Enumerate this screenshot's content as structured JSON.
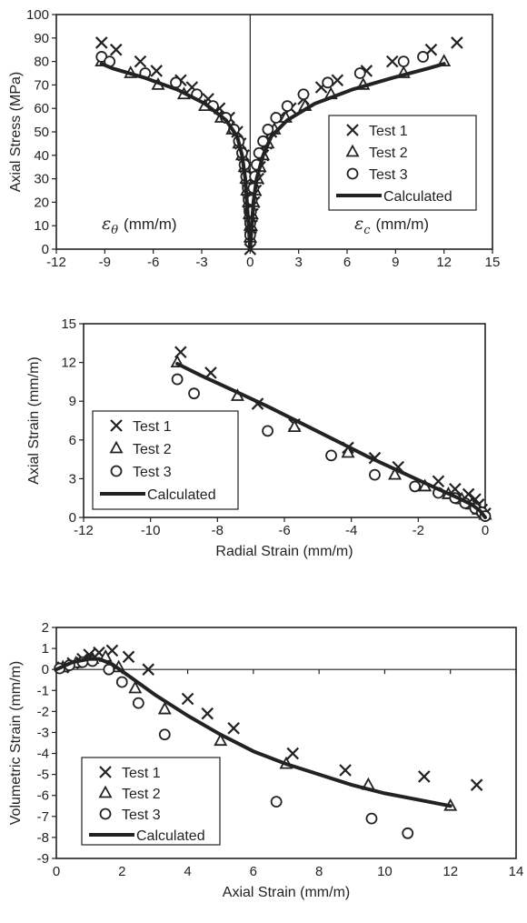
{
  "chart_data": [
    {
      "type": "scatter",
      "xlim": [
        -12,
        15
      ],
      "ylim": [
        0,
        100
      ],
      "xticks": [
        -12,
        -9,
        -6,
        -3,
        0,
        3,
        6,
        9,
        12,
        15
      ],
      "yticks": [
        0,
        10,
        20,
        30,
        40,
        50,
        60,
        70,
        80,
        90,
        100
      ],
      "xlabel": "",
      "ylabel": "Axial Stress (MPa)",
      "annotations": {
        "left": {
          "symbol": "ε",
          "sub": "θ",
          "text": "(mm/m)"
        },
        "right": {
          "symbol": "ε",
          "sub": "c",
          "text": "(mm/m)"
        }
      },
      "legend": {
        "position": "right",
        "entries": [
          "Test 1",
          "Test 2",
          "Test 3",
          "Calculated"
        ]
      },
      "series": [
        {
          "name": "Test 1",
          "marker": "x",
          "points": [
            [
              -9.2,
              88
            ],
            [
              -8.3,
              85
            ],
            [
              -6.8,
              80
            ],
            [
              -5.8,
              76
            ],
            [
              -4.3,
              72
            ],
            [
              -3.6,
              69
            ],
            [
              -2.6,
              64
            ],
            [
              -1.9,
              60
            ],
            [
              -1.3,
              56
            ],
            [
              -0.8,
              50
            ],
            [
              -0.6,
              45
            ],
            [
              -0.4,
              40
            ],
            [
              -0.3,
              35
            ],
            [
              -0.2,
              30
            ],
            [
              -0.15,
              25
            ],
            [
              -0.1,
              20
            ],
            [
              -0.05,
              15
            ],
            [
              0,
              10
            ],
            [
              0,
              5
            ],
            [
              0,
              0
            ],
            [
              12.8,
              88
            ],
            [
              11.2,
              85
            ],
            [
              8.8,
              80
            ],
            [
              7.2,
              76
            ],
            [
              5.4,
              72
            ],
            [
              4.4,
              69
            ],
            [
              3.3,
              64
            ],
            [
              2.5,
              60
            ],
            [
              1.8,
              56
            ],
            [
              1.3,
              50
            ],
            [
              1.0,
              45
            ],
            [
              0.8,
              40
            ],
            [
              0.6,
              35
            ],
            [
              0.5,
              30
            ],
            [
              0.35,
              25
            ],
            [
              0.25,
              20
            ],
            [
              0.15,
              15
            ],
            [
              0.1,
              10
            ],
            [
              0.05,
              5
            ]
          ]
        },
        {
          "name": "Test 2",
          "marker": "triangle",
          "points": [
            [
              -9.2,
              80
            ],
            [
              -7.4,
              75
            ],
            [
              -5.7,
              70
            ],
            [
              -4.1,
              66
            ],
            [
              -2.8,
              61
            ],
            [
              -1.8,
              56
            ],
            [
              -1.1,
              51
            ],
            [
              -0.7,
              45
            ],
            [
              -0.5,
              40
            ],
            [
              -0.35,
              35
            ],
            [
              -0.25,
              30
            ],
            [
              -0.2,
              25
            ],
            [
              -0.1,
              20
            ],
            [
              -0.05,
              15
            ],
            [
              0,
              10
            ],
            [
              0,
              5
            ],
            [
              12.0,
              80
            ],
            [
              9.5,
              75
            ],
            [
              7.0,
              70
            ],
            [
              5.0,
              66
            ],
            [
              3.4,
              61
            ],
            [
              2.2,
              56
            ],
            [
              1.5,
              51
            ],
            [
              1.1,
              45
            ],
            [
              0.8,
              40
            ],
            [
              0.6,
              35
            ],
            [
              0.45,
              30
            ],
            [
              0.3,
              25
            ],
            [
              0.2,
              20
            ],
            [
              0.1,
              15
            ],
            [
              0.05,
              10
            ]
          ]
        },
        {
          "name": "Test 3",
          "marker": "circle",
          "points": [
            [
              -9.2,
              82
            ],
            [
              -8.7,
              80
            ],
            [
              -6.5,
              75
            ],
            [
              -4.6,
              71
            ],
            [
              -3.3,
              66
            ],
            [
              -2.3,
              61
            ],
            [
              -1.5,
              56
            ],
            [
              -1.0,
              51
            ],
            [
              -0.7,
              46
            ],
            [
              -0.5,
              41
            ],
            [
              -0.35,
              36
            ],
            [
              -0.25,
              31
            ],
            [
              -0.15,
              26
            ],
            [
              -0.1,
              21
            ],
            [
              -0.05,
              16
            ],
            [
              0,
              11
            ],
            [
              0,
              6
            ],
            [
              10.7,
              82
            ],
            [
              9.5,
              80
            ],
            [
              6.8,
              75
            ],
            [
              4.8,
              71
            ],
            [
              3.3,
              66
            ],
            [
              2.3,
              61
            ],
            [
              1.6,
              56
            ],
            [
              1.1,
              51
            ],
            [
              0.8,
              46
            ],
            [
              0.55,
              41
            ],
            [
              0.4,
              36
            ],
            [
              0.3,
              31
            ],
            [
              0.2,
              26
            ],
            [
              0.1,
              21
            ],
            [
              0.05,
              16
            ]
          ]
        },
        {
          "name": "Calculated",
          "marker": "line",
          "segments": [
            [
              [
                0,
                0
              ],
              [
                -0.1,
                10
              ],
              [
                -0.2,
                20
              ],
              [
                -0.3,
                30
              ],
              [
                -0.5,
                40
              ],
              [
                -0.8,
                48
              ],
              [
                -1.5,
                55
              ],
              [
                -2.8,
                62
              ],
              [
                -4.5,
                68
              ],
              [
                -6.5,
                73
              ],
              [
                -8.5,
                77
              ],
              [
                -9.2,
                79
              ]
            ],
            [
              [
                0,
                0
              ],
              [
                0.1,
                10
              ],
              [
                0.2,
                20
              ],
              [
                0.4,
                30
              ],
              [
                0.8,
                40
              ],
              [
                1.3,
                48
              ],
              [
                2.3,
                55
              ],
              [
                4.0,
                62
              ],
              [
                6.3,
                68
              ],
              [
                8.8,
                73
              ],
              [
                11.0,
                77
              ],
              [
                12.0,
                79
              ]
            ]
          ]
        }
      ]
    },
    {
      "type": "scatter",
      "xlim": [
        -12,
        0
      ],
      "ylim": [
        0,
        15
      ],
      "xticks": [
        -12,
        -10,
        -8,
        -6,
        -4,
        -2,
        0
      ],
      "yticks": [
        0,
        3,
        6,
        9,
        12,
        15
      ],
      "xlabel": "Radial Strain (mm/m)",
      "ylabel": "Axial Strain (mm/m)",
      "legend": {
        "position": "bottom-left",
        "entries": [
          "Test 1",
          "Test 2",
          "Test 3",
          "Calculated"
        ]
      },
      "series": [
        {
          "name": "Test 1",
          "marker": "x",
          "points": [
            [
              -9.1,
              12.8
            ],
            [
              -8.2,
              11.2
            ],
            [
              -6.8,
              8.8
            ],
            [
              -5.7,
              7.2
            ],
            [
              -4.1,
              5.4
            ],
            [
              -3.3,
              4.6
            ],
            [
              -2.6,
              3.9
            ],
            [
              -1.4,
              2.8
            ],
            [
              -0.9,
              2.2
            ],
            [
              -0.5,
              1.8
            ],
            [
              -0.3,
              1.4
            ],
            [
              -0.2,
              1.0
            ],
            [
              -0.1,
              0.6
            ],
            [
              0,
              0.3
            ]
          ]
        },
        {
          "name": "Test 2",
          "marker": "triangle",
          "points": [
            [
              -9.2,
              12.0
            ],
            [
              -7.4,
              9.4
            ],
            [
              -5.7,
              7.0
            ],
            [
              -4.1,
              5.0
            ],
            [
              -2.7,
              3.3
            ],
            [
              -1.8,
              2.4
            ],
            [
              -1.1,
              1.8
            ],
            [
              -0.7,
              1.4
            ],
            [
              -0.4,
              1.0
            ],
            [
              -0.2,
              0.6
            ],
            [
              0,
              0.2
            ]
          ]
        },
        {
          "name": "Test 3",
          "marker": "circle",
          "points": [
            [
              -9.2,
              10.7
            ],
            [
              -8.7,
              9.6
            ],
            [
              -6.5,
              6.7
            ],
            [
              -4.6,
              4.8
            ],
            [
              -3.3,
              3.3
            ],
            [
              -2.1,
              2.4
            ],
            [
              -1.4,
              1.9
            ],
            [
              -0.9,
              1.5
            ],
            [
              -0.6,
              1.1
            ],
            [
              -0.3,
              0.7
            ],
            [
              -0.1,
              0.4
            ],
            [
              0,
              0.1
            ]
          ]
        },
        {
          "name": "Calculated",
          "marker": "line",
          "points": [
            [
              -9.2,
              11.9
            ],
            [
              -8.5,
              11.0
            ],
            [
              -7.5,
              9.8
            ],
            [
              -6.5,
              8.6
            ],
            [
              -5.5,
              7.3
            ],
            [
              -4.5,
              6.0
            ],
            [
              -3.5,
              4.7
            ],
            [
              -2.5,
              3.5
            ],
            [
              -1.5,
              2.3
            ],
            [
              -0.8,
              1.5
            ],
            [
              -0.4,
              1.0
            ],
            [
              -0.15,
              0.5
            ],
            [
              0,
              0
            ]
          ]
        }
      ]
    },
    {
      "type": "scatter",
      "xlim": [
        0,
        14
      ],
      "ylim": [
        -9,
        2
      ],
      "xticks": [
        0,
        2,
        4,
        6,
        8,
        10,
        12,
        14
      ],
      "yticks": [
        2,
        1,
        0,
        -1,
        -2,
        -3,
        -4,
        -5,
        -6,
        -7,
        -8,
        -9
      ],
      "xlabel": "Axial Strain (mm/m)",
      "ylabel": "Volumetric Strain (mm/m)",
      "legend": {
        "position": "bottom-left",
        "entries": [
          "Test 1",
          "Test 2",
          "Test 3",
          "Calculated"
        ]
      },
      "series": [
        {
          "name": "Test 1",
          "marker": "x",
          "points": [
            [
              0.2,
              0.1
            ],
            [
              0.5,
              0.3
            ],
            [
              0.8,
              0.5
            ],
            [
              1.0,
              0.7
            ],
            [
              1.3,
              0.8
            ],
            [
              1.7,
              0.9
            ],
            [
              2.2,
              0.6
            ],
            [
              2.8,
              0.0
            ],
            [
              4.0,
              -1.4
            ],
            [
              4.6,
              -2.1
            ],
            [
              5.4,
              -2.8
            ],
            [
              7.2,
              -4.0
            ],
            [
              8.8,
              -4.8
            ],
            [
              11.2,
              -5.1
            ],
            [
              12.8,
              -5.5
            ]
          ]
        },
        {
          "name": "Test 2",
          "marker": "triangle",
          "points": [
            [
              0.2,
              0.1
            ],
            [
              0.6,
              0.3
            ],
            [
              1.1,
              0.5
            ],
            [
              1.5,
              0.6
            ],
            [
              1.9,
              0.1
            ],
            [
              2.4,
              -0.9
            ],
            [
              3.3,
              -1.9
            ],
            [
              5.0,
              -3.4
            ],
            [
              7.0,
              -4.5
            ],
            [
              9.5,
              -5.5
            ],
            [
              12.0,
              -6.5
            ]
          ]
        },
        {
          "name": "Test 3",
          "marker": "circle",
          "points": [
            [
              0.1,
              0.05
            ],
            [
              0.4,
              0.2
            ],
            [
              0.8,
              0.35
            ],
            [
              1.1,
              0.4
            ],
            [
              1.6,
              0.0
            ],
            [
              2.0,
              -0.6
            ],
            [
              2.5,
              -1.6
            ],
            [
              3.3,
              -3.1
            ],
            [
              6.7,
              -6.3
            ],
            [
              9.6,
              -7.1
            ],
            [
              10.7,
              -7.8
            ]
          ]
        },
        {
          "name": "Calculated",
          "marker": "line",
          "points": [
            [
              0,
              0
            ],
            [
              0.5,
              0.35
            ],
            [
              1.0,
              0.5
            ],
            [
              1.3,
              0.5
            ],
            [
              1.7,
              0.25
            ],
            [
              2.2,
              -0.3
            ],
            [
              3.0,
              -1.2
            ],
            [
              4.0,
              -2.2
            ],
            [
              5.0,
              -3.1
            ],
            [
              6.0,
              -3.9
            ],
            [
              7.0,
              -4.5
            ],
            [
              8.0,
              -5.0
            ],
            [
              9.0,
              -5.5
            ],
            [
              10.0,
              -5.9
            ],
            [
              11.0,
              -6.2
            ],
            [
              12.0,
              -6.5
            ]
          ]
        }
      ]
    }
  ]
}
